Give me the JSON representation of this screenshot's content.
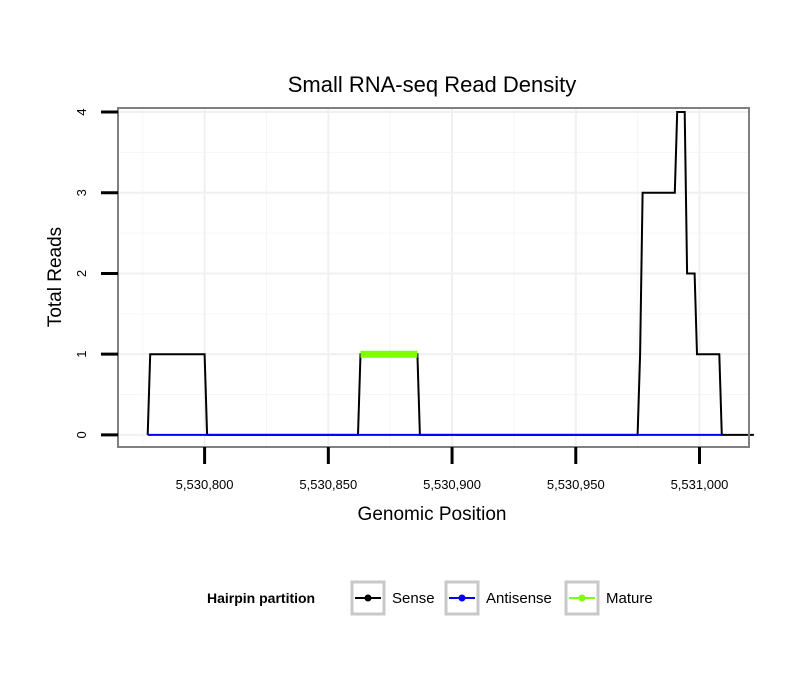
{
  "chart_data": {
    "type": "line",
    "title": "Small RNA-seq Read Density",
    "xlabel": "Genomic Position",
    "ylabel": "Total Reads",
    "xlim": [
      5530765,
      5531020
    ],
    "ylim": [
      -0.15,
      4.05
    ],
    "x_ticks": [
      5530800,
      5530850,
      5530900,
      5530950,
      5531000
    ],
    "x_tick_labels": [
      "5,530,800",
      "5,530,850",
      "5,530,900",
      "5,530,950",
      "5,531,000"
    ],
    "y_ticks": [
      0,
      1,
      2,
      3,
      4
    ],
    "y_tick_labels": [
      "0",
      "1",
      "2",
      "3",
      "4"
    ],
    "grid": true,
    "legend": {
      "title": "Hairpin partition",
      "position": "bottom",
      "entries": [
        "Sense",
        "Antisense",
        "Mature"
      ]
    },
    "colors": {
      "Sense": "#000000",
      "Antisense": "#0000ff",
      "Mature": "#7fff00"
    },
    "series": [
      {
        "name": "Sense",
        "points": [
          [
            5530777,
            0
          ],
          [
            5530778,
            1
          ],
          [
            5530800,
            1
          ],
          [
            5530801,
            0
          ],
          [
            5530862,
            0
          ],
          [
            5530863,
            1
          ],
          [
            5530886,
            1
          ],
          [
            5530887,
            0
          ],
          [
            5530975,
            0
          ],
          [
            5530976,
            1
          ],
          [
            5530977,
            3
          ],
          [
            5530990,
            3
          ],
          [
            5530991,
            4
          ],
          [
            5530994,
            4
          ],
          [
            5530995,
            2
          ],
          [
            5530998,
            2
          ],
          [
            5530999,
            1
          ],
          [
            5531008,
            1
          ],
          [
            5531009,
            0
          ],
          [
            5531022,
            0
          ]
        ]
      },
      {
        "name": "Antisense",
        "points": [
          [
            5530777,
            0
          ],
          [
            5531009,
            0
          ]
        ]
      },
      {
        "name": "Mature",
        "points": [
          [
            5530863,
            1
          ],
          [
            5530886,
            1
          ]
        ]
      }
    ]
  }
}
